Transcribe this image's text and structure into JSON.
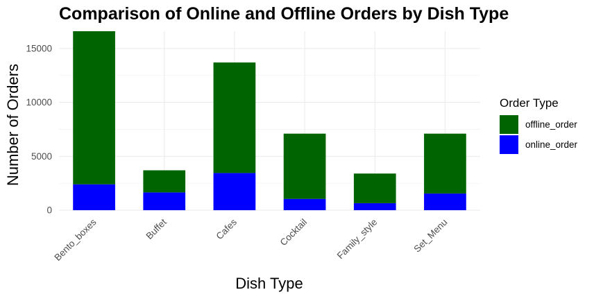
{
  "chart_data": {
    "type": "bar",
    "stacked": true,
    "title": "Comparison of Online and Offline Orders by Dish Type",
    "xlabel": "Dish Type",
    "ylabel": "Number of Orders",
    "categories": [
      "Bento_boxes",
      "Buffet",
      "Cafes",
      "Cocktail",
      "Family_style",
      "Set_Menu"
    ],
    "series": [
      {
        "name": "online_order",
        "color": "#0000ff",
        "values": [
          2400,
          1650,
          3450,
          1050,
          650,
          1550
        ]
      },
      {
        "name": "offline_order",
        "color": "#006400",
        "values": [
          14200,
          2050,
          10250,
          6050,
          2750,
          5550
        ]
      }
    ],
    "ylim": [
      0,
      16600
    ],
    "yticks": [
      0,
      5000,
      10000,
      15000
    ],
    "legend": {
      "title": "Order Type",
      "position": "right",
      "items": [
        "offline_order",
        "online_order"
      ]
    },
    "grid": true
  }
}
